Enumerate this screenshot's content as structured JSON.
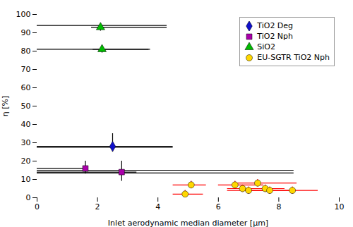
{
  "chart_data": {
    "type": "scatter",
    "xlabel": "Inlet aerodynamic median diameter [μm]",
    "ylabel": "η [%]",
    "xlim": [
      0,
      10
    ],
    "ylim": [
      0,
      100
    ],
    "xticks": [
      0,
      2,
      4,
      6,
      8,
      10
    ],
    "yticks": [
      0,
      10,
      20,
      30,
      40,
      50,
      60,
      70,
      80,
      90,
      100
    ],
    "legend": "upper right",
    "hlines": {
      "color": "black",
      "lines": [
        {
          "y": 94,
          "x0": 0.0,
          "x1": 4.3
        },
        {
          "y": 81,
          "x0": 0.0,
          "x1": 3.7
        },
        {
          "y": 27.5,
          "x0": 0.0,
          "x1": 4.5
        },
        {
          "y": 15,
          "x0": 0.0,
          "x1": 8.5
        },
        {
          "y": 13.5,
          "x0": 0.0,
          "x1": 8.5
        }
      ]
    },
    "series": [
      {
        "name": "TiO2 Deg",
        "color": "#1010CC",
        "marker": "diamond",
        "error_color": "black",
        "x": [
          2.5
        ],
        "values": [
          28
        ],
        "xerr_lo": [
          2.5
        ],
        "xerr_hi": [
          2.0
        ],
        "yerr_lo": [
          3
        ],
        "yerr_hi": [
          7
        ]
      },
      {
        "name": "TiO2 Nph",
        "color": "#AA00AA",
        "marker": "square",
        "error_color": "black",
        "x": [
          1.6,
          2.8
        ],
        "values": [
          16,
          14
        ],
        "xerr_lo": [
          1.6,
          2.8
        ],
        "xerr_hi": [
          0.0,
          0.5
        ],
        "yerr_lo": [
          3,
          5
        ],
        "yerr_hi": [
          4,
          6
        ]
      },
      {
        "name": "SiO2",
        "color": "#00BB00",
        "marker": "triangle",
        "error_color": "black",
        "x": [
          2.1,
          2.15
        ],
        "values": [
          93,
          81
        ],
        "xerr_lo": [
          0.3,
          0.3
        ],
        "xerr_hi": [
          2.2,
          1.6
        ],
        "yerr_lo": [
          2,
          2
        ],
        "yerr_hi": [
          2,
          2
        ]
      },
      {
        "name": "EU-SGTR TiO2 Nph",
        "color": "#FFD700",
        "marker": "circle",
        "error_color": "red",
        "x": [
          4.9,
          5.1,
          6.55,
          6.8,
          7.0,
          7.3,
          7.55,
          7.7,
          8.45
        ],
        "values": [
          2,
          7,
          7,
          5,
          4,
          8,
          5,
          4,
          4
        ],
        "xerr_lo": [
          0.4,
          0.6,
          0.55,
          0.5,
          0.7,
          0.8,
          0.75,
          0.6,
          0.85
        ],
        "xerr_hi": [
          0.6,
          0.5,
          0.95,
          0.7,
          0.65,
          1.3,
          0.65,
          0.8,
          0.85
        ],
        "yerr_lo": [
          2,
          2,
          2,
          2,
          2,
          2,
          2,
          2,
          2
        ],
        "yerr_hi": [
          2,
          2,
          2,
          2,
          2,
          2,
          2,
          2,
          2
        ]
      }
    ]
  }
}
